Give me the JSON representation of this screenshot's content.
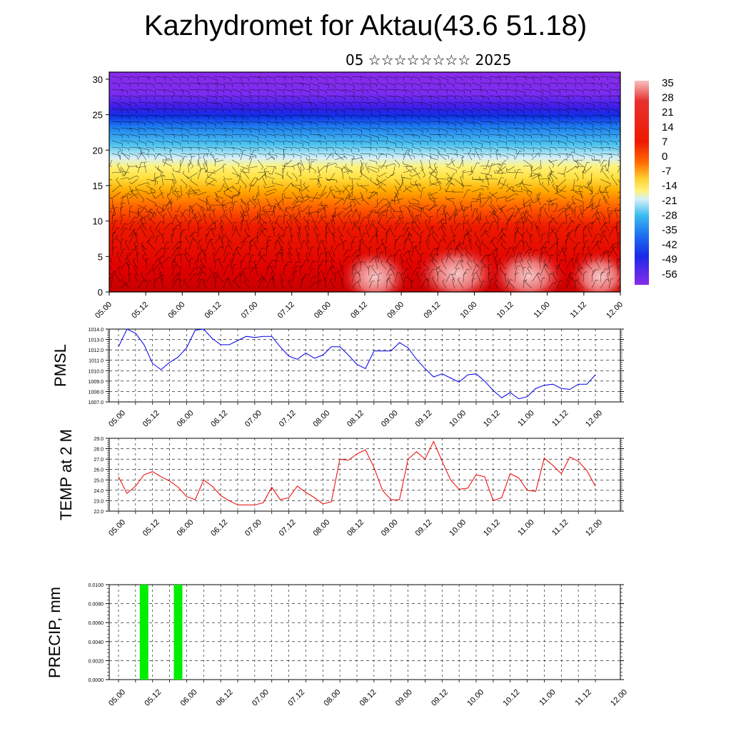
{
  "title": "Kazhydromet for Aktau(43.6 51.18)",
  "subtitle": "05 ☆☆☆☆☆☆☆☆ 2025",
  "chart_data": [
    {
      "type": "heatmap",
      "id": "temperature-cross-section",
      "description_kind": "filled contour with wind barbs",
      "x_tick_labels": [
        "05.00",
        "05.12",
        "06.00",
        "06.12",
        "07.00",
        "07.12",
        "08.00",
        "08.12",
        "09.00",
        "09.12",
        "10.00",
        "10.12",
        "11.00",
        "11.12",
        "12.00"
      ],
      "y_ticks": [
        0,
        5,
        10,
        15,
        20,
        25,
        30
      ],
      "ylim": [
        0,
        31
      ],
      "colorbar_labels": [
        "35",
        "28",
        "21",
        "14",
        "7",
        "0",
        "-7",
        "-14",
        "-21",
        "-28",
        "-35",
        "-42",
        "-49",
        "-56"
      ],
      "colors": {
        "warm": "#d00000",
        "hot": "#f4a0a0",
        "orange": "#ff8c00",
        "yellow": "#ffee55",
        "cyan": "#2ab4f0",
        "blue": "#1030e8",
        "purple": "#8a2be2"
      }
    },
    {
      "type": "line",
      "id": "pmsl",
      "ylabel": "PMSL",
      "x_tick_labels": [
        "05.00",
        "05.12",
        "06.00",
        "06.12",
        "07.00",
        "07.12",
        "08.00",
        "08.12",
        "09.00",
        "09.12",
        "10.00",
        "10.12",
        "11.00",
        "11.12",
        "12.00"
      ],
      "y_tick_labels": [
        "1014.0",
        "1013.0",
        "1012.0",
        "1011.0",
        "1010.0",
        "1009.0",
        "1008.0",
        "1007.0"
      ],
      "ylim": [
        1007,
        1014
      ],
      "color": "#0000ee",
      "series": [
        {
          "x": [
            0,
            3,
            6,
            9,
            12,
            15,
            18,
            21,
            24,
            27,
            30,
            33,
            36,
            39,
            42,
            45,
            48,
            51,
            54,
            57,
            60,
            63,
            66,
            69,
            72,
            75,
            78,
            81,
            84,
            87,
            90,
            93,
            96,
            99,
            102,
            105,
            108,
            111,
            114,
            117,
            120,
            123,
            126,
            129,
            132,
            135,
            138,
            141,
            144,
            147,
            150,
            153,
            156,
            159,
            162,
            165,
            168
          ],
          "values": [
            1012.3,
            1014.0,
            1013.6,
            1012.5,
            1010.7,
            1010.1,
            1010.8,
            1011.3,
            1012.2,
            1013.9,
            1014.0,
            1013.1,
            1012.5,
            1012.5,
            1012.9,
            1013.3,
            1013.2,
            1013.3,
            1013.3,
            1012.3,
            1011.4,
            1011.1,
            1011.7,
            1011.2,
            1011.5,
            1012.3,
            1012.3,
            1011.5,
            1010.6,
            1010.2,
            1011.9,
            1011.9,
            1011.9,
            1012.7,
            1012.2,
            1011.1,
            1010.2,
            1009.4,
            1009.7,
            1009.3,
            1008.9,
            1009.6,
            1009.7,
            1009.0,
            1008.1,
            1007.4,
            1007.9,
            1007.3,
            1007.5,
            1008.3,
            1008.6,
            1008.7,
            1008.3,
            1008.2,
            1008.7,
            1008.7,
            1009.6
          ]
        }
      ]
    },
    {
      "type": "line",
      "id": "temp2m",
      "ylabel": "TEMP at 2 M",
      "x_tick_labels": [
        "05.00",
        "05.12",
        "06.00",
        "06.12",
        "07.00",
        "07.12",
        "08.00",
        "08.12",
        "09.00",
        "09.12",
        "10.00",
        "10.12",
        "11.00",
        "11.12",
        "12.00"
      ],
      "y_tick_labels": [
        "29.0",
        "28.0",
        "27.0",
        "26.0",
        "25.0",
        "24.0",
        "23.0",
        "22.0"
      ],
      "ylim": [
        22,
        29
      ],
      "color": "#ee0000",
      "series": [
        {
          "x": [
            0,
            3,
            6,
            9,
            12,
            15,
            18,
            21,
            24,
            27,
            30,
            33,
            36,
            39,
            42,
            45,
            48,
            51,
            54,
            57,
            60,
            63,
            66,
            69,
            72,
            75,
            78,
            81,
            84,
            87,
            90,
            93,
            96,
            99,
            102,
            105,
            108,
            111,
            114,
            117,
            120,
            123,
            126,
            129,
            132,
            135,
            138,
            141,
            144,
            147,
            150,
            153,
            156,
            159,
            162,
            165,
            168
          ],
          "values": [
            25.3,
            23.7,
            24.4,
            25.5,
            25.8,
            25.3,
            24.9,
            24.3,
            23.4,
            23.1,
            25.0,
            24.4,
            23.5,
            23.0,
            22.6,
            22.6,
            22.6,
            22.8,
            24.3,
            23.1,
            23.3,
            24.4,
            23.8,
            23.3,
            22.7,
            22.9,
            27.0,
            26.9,
            27.5,
            27.9,
            26.2,
            24.0,
            23.1,
            23.1,
            27.0,
            27.7,
            27.0,
            28.7,
            26.8,
            25.0,
            24.1,
            24.2,
            25.5,
            25.3,
            23.0,
            23.3,
            25.6,
            25.2,
            24.0,
            23.9,
            27.1,
            26.4,
            25.6,
            27.2,
            26.8,
            25.9,
            24.4
          ]
        }
      ]
    },
    {
      "type": "bar",
      "id": "precip",
      "ylabel": "PRECIP, mm",
      "x_tick_labels": [
        "05.00",
        "05.12",
        "06.00",
        "06.12",
        "07.00",
        "07.12",
        "08.00",
        "08.12",
        "09.00",
        "09.12",
        "10.00",
        "10.12",
        "11.00",
        "11.12",
        "12.00"
      ],
      "y_tick_labels": [
        "0.0100",
        "0.0080",
        "0.0060",
        "0.0040",
        "0.0020",
        "0.0000"
      ],
      "ylim": [
        0,
        0.01
      ],
      "color": "#00ee00",
      "bars": [
        {
          "x": 9,
          "value": 0.01
        },
        {
          "x": 21,
          "value": 0.01
        }
      ]
    }
  ]
}
